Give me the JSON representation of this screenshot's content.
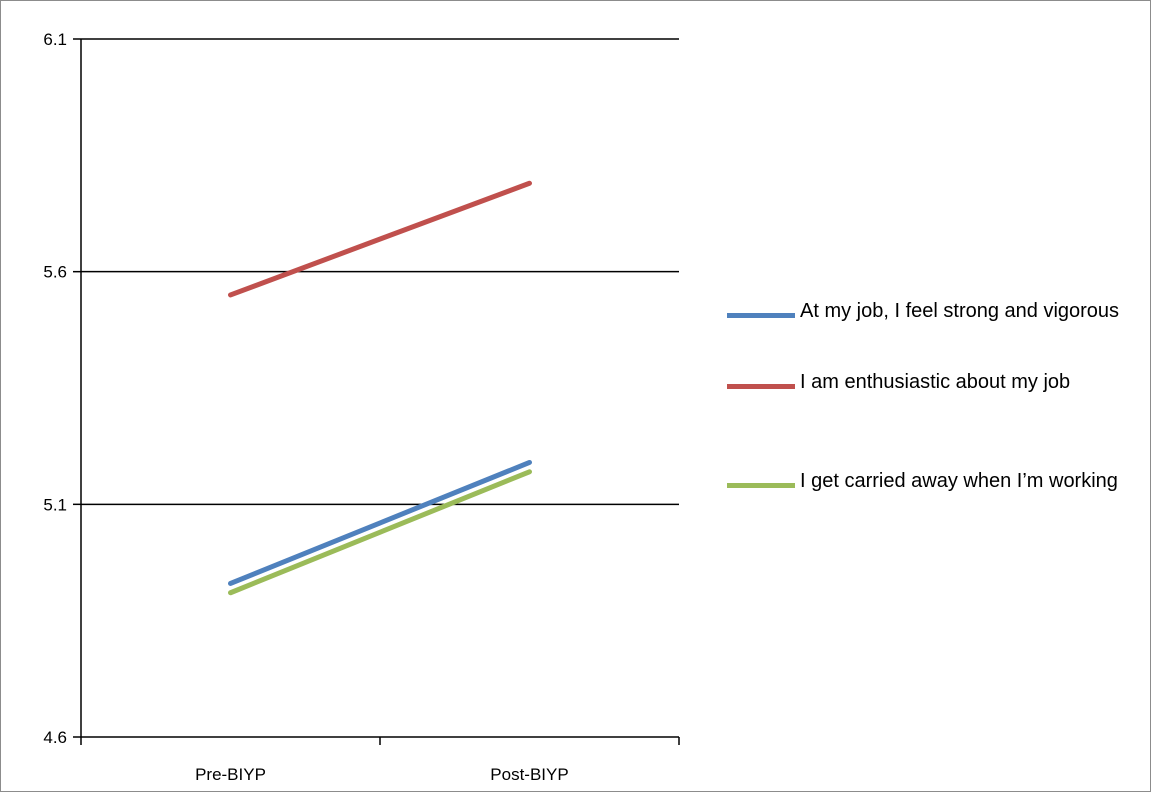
{
  "chart_data": {
    "type": "line",
    "title": "",
    "xlabel": "",
    "ylabel": "",
    "categories": [
      "Pre-BIYP",
      "Post-BIYP"
    ],
    "ylim": [
      4.6,
      6.1
    ],
    "yticks": [
      "4.6",
      "5.1",
      "5.6",
      "6.1"
    ],
    "grid": true,
    "legend_position": "right",
    "series": [
      {
        "name": "At my job, I feel strong and vigorous",
        "values": [
          4.93,
          5.19
        ],
        "color": "#4f81bd"
      },
      {
        "name": "I am enthusiastic about my job",
        "values": [
          5.55,
          5.79
        ],
        "color": "#c0504d"
      },
      {
        "name": "I get carried away when I’m working",
        "values": [
          4.91,
          5.17
        ],
        "color": "#9bbb59"
      }
    ]
  }
}
